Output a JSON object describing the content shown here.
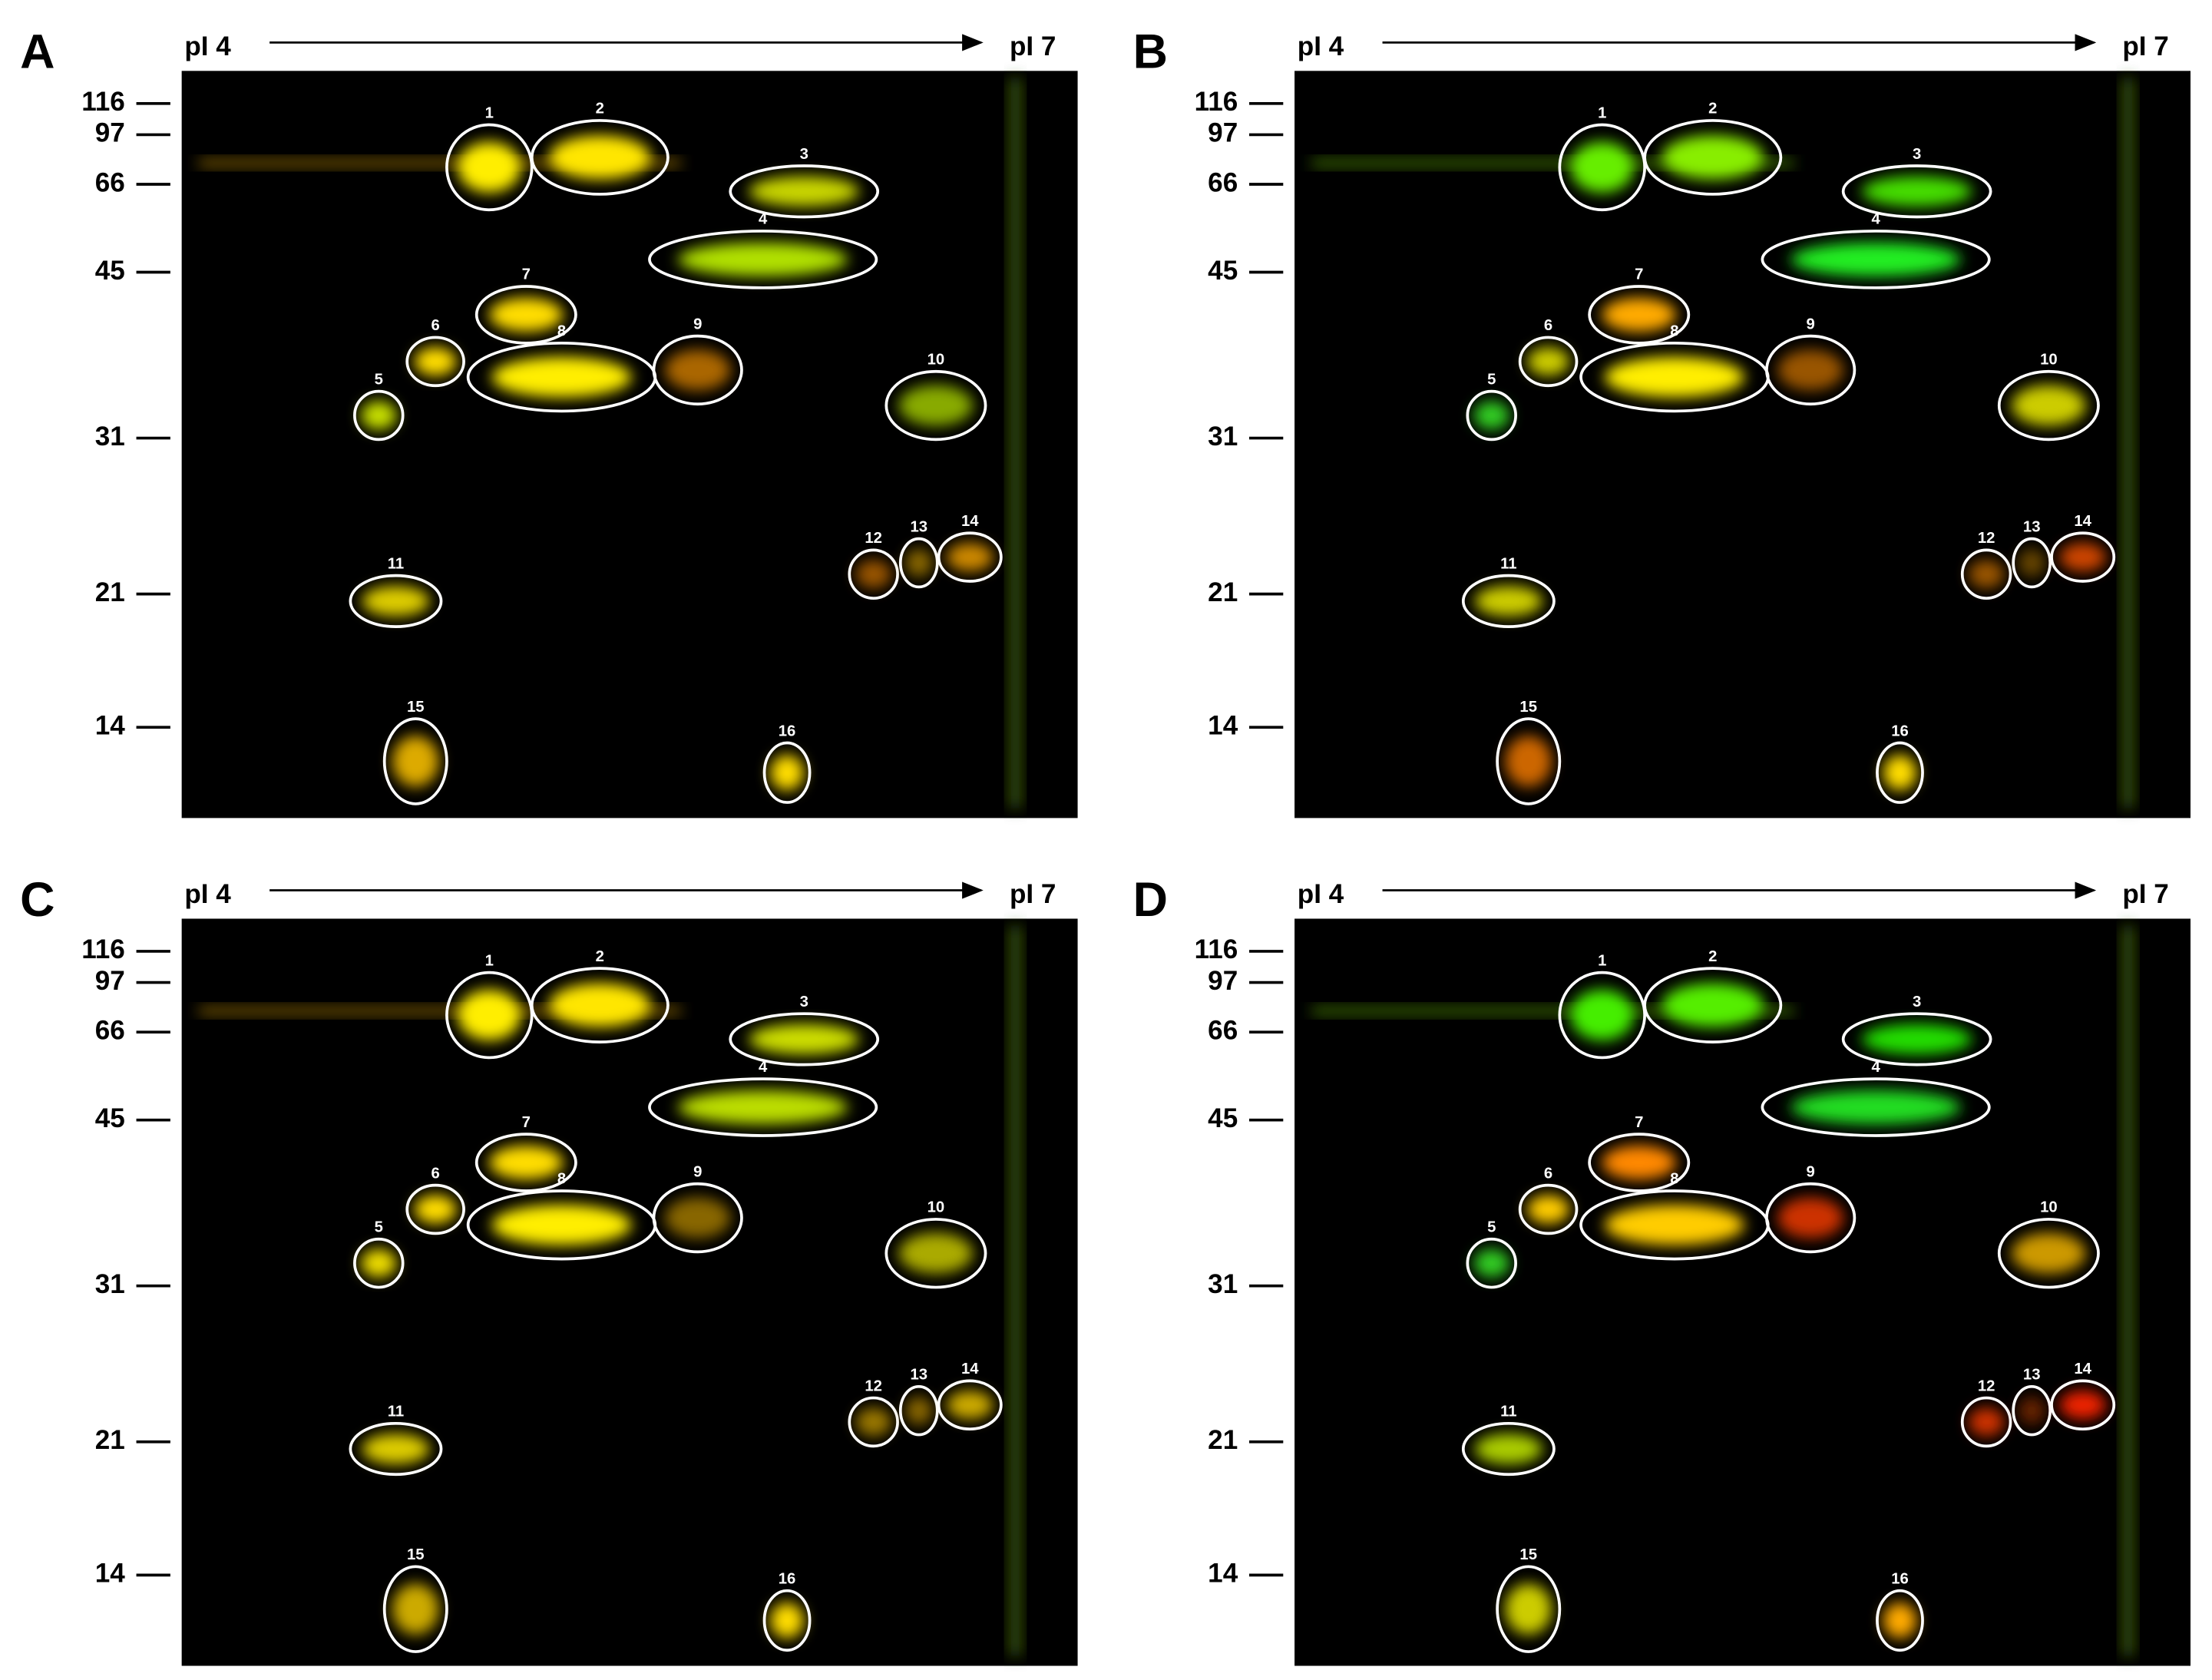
{
  "panels": [
    {
      "label": "A",
      "pi_start": "pI 4",
      "pi_end": "pI 7",
      "mw_markers": [
        "116",
        "97",
        "66",
        "45",
        "31",
        "21",
        "14"
      ],
      "spots": [
        "1",
        "2",
        "3",
        "4",
        "5",
        "6",
        "7",
        "8",
        "9",
        "10",
        "11",
        "12",
        "13",
        "14",
        "15",
        "16"
      ]
    },
    {
      "label": "B",
      "pi_start": "pI 4",
      "pi_end": "pI 7",
      "mw_markers": [
        "116",
        "97",
        "66",
        "45",
        "31",
        "21",
        "14"
      ],
      "spots": [
        "1",
        "2",
        "3",
        "4",
        "5",
        "6",
        "7",
        "8",
        "9",
        "10",
        "11",
        "12",
        "13",
        "14",
        "15",
        "16"
      ]
    },
    {
      "label": "C",
      "pi_start": "pI 4",
      "pi_end": "pI 7",
      "mw_markers": [
        "116",
        "97",
        "66",
        "45",
        "31",
        "21",
        "14"
      ],
      "spots": [
        "1",
        "2",
        "3",
        "4",
        "5",
        "6",
        "7",
        "8",
        "9",
        "10",
        "11",
        "12",
        "13",
        "14",
        "15",
        "16"
      ]
    },
    {
      "label": "D",
      "pi_start": "pI 4",
      "pi_end": "pI 7",
      "mw_markers": [
        "116",
        "97",
        "66",
        "45",
        "31",
        "21",
        "14"
      ],
      "spots": [
        "1",
        "2",
        "3",
        "4",
        "5",
        "6",
        "7",
        "8",
        "9",
        "10",
        "11",
        "12",
        "13",
        "14",
        "15",
        "16"
      ]
    }
  ]
}
